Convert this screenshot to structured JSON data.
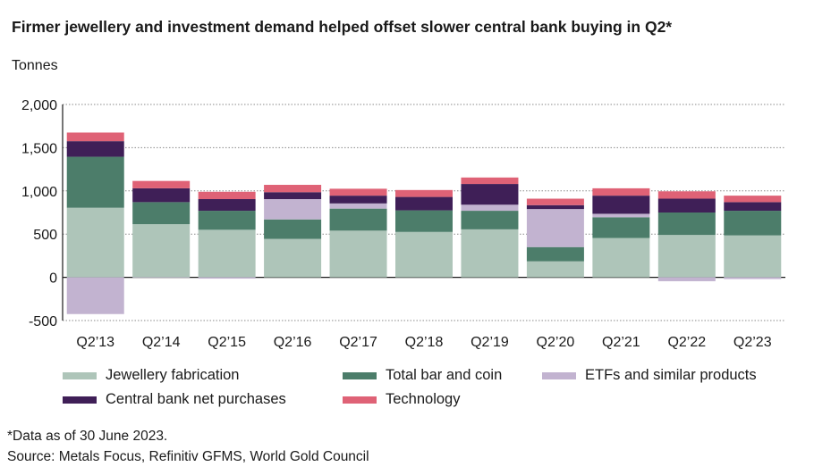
{
  "title": "Firmer jewellery and investment demand helped offset slower central bank buying in Q2*",
  "footnote": "*Data as of 30 June 2023.",
  "source": "Source: Metals Focus, Refinitiv GFMS, World Gold Council",
  "colors": {
    "jewellery": "#aec5b9",
    "barcoin": "#4c7d6a",
    "etfs": "#c2b3d0",
    "central": "#3f1f57",
    "technology": "#df6276",
    "grid": "#8a8a8a",
    "axis": "#1a1a1a"
  },
  "chart_data": {
    "type": "bar",
    "stacked": true,
    "ylabel": "Tonnes",
    "ylim": [
      -500,
      2000
    ],
    "yticks": [
      2000,
      1500,
      1000,
      500,
      0,
      -500
    ],
    "ytick_labels": [
      "2,000",
      "1,500",
      "1,000",
      "500",
      "0",
      "-500"
    ],
    "grid": "dotted-horizontal",
    "legend_position": "bottom",
    "categories": [
      "Q2’13",
      "Q2’14",
      "Q2’15",
      "Q2’16",
      "Q2’17",
      "Q2’18",
      "Q2’19",
      "Q2’20",
      "Q2’21",
      "Q2’22",
      "Q2’23"
    ],
    "series": [
      {
        "name": "Jewellery fabrication",
        "key": "jewellery",
        "values": [
          805,
          615,
          550,
          445,
          540,
          525,
          555,
          185,
          455,
          490,
          485
        ]
      },
      {
        "name": "Total bar and coin",
        "key": "barcoin",
        "values": [
          590,
          255,
          220,
          225,
          255,
          250,
          215,
          165,
          240,
          260,
          285
        ]
      },
      {
        "name": "ETFs and similar products",
        "key": "etfs",
        "values": [
          -425,
          -5,
          -15,
          235,
          60,
          0,
          70,
          440,
          40,
          -45,
          -20
        ]
      },
      {
        "name": "Central bank net purchases",
        "key": "central",
        "values": [
          180,
          160,
          135,
          80,
          90,
          155,
          240,
          45,
          210,
          160,
          100
        ]
      },
      {
        "name": "Technology",
        "key": "technology",
        "values": [
          100,
          85,
          85,
          85,
          80,
          80,
          75,
          75,
          85,
          85,
          75
        ]
      }
    ]
  }
}
